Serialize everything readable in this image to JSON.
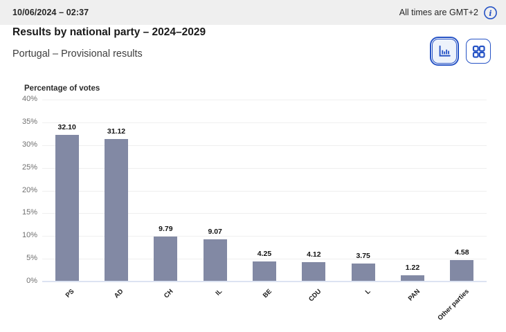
{
  "topbar": {
    "datetime": "10/06/2024 – 02:37",
    "timezone_note": "All times are GMT+2"
  },
  "header": {
    "title": "Results by national party – 2024–2029",
    "subtitle": "Portugal – Provisional results"
  },
  "view_toggle": {
    "chart_button_label": "bar chart view",
    "grid_button_label": "grid view",
    "selected": "chart"
  },
  "colors": {
    "accent_blue": "#2653c5",
    "bar_fill": "#8289a4",
    "topbar_bg": "#efefef",
    "gridline": "#efefef",
    "axis_line": "#dce3f2",
    "selected_toggle_bg": "#edf2fb"
  },
  "chart_data": {
    "type": "bar",
    "title": "Percentage of votes",
    "categories": [
      "PS",
      "AD",
      "CH",
      "IL",
      "BE",
      "CDU",
      "L",
      "PAN",
      "Other parties"
    ],
    "values": [
      32.1,
      31.12,
      9.79,
      9.07,
      4.25,
      4.12,
      3.75,
      1.22,
      4.58
    ],
    "value_labels": [
      "32.10",
      "31.12",
      "9.79",
      "9.07",
      "4.25",
      "4.12",
      "3.75",
      "1.22",
      "4.58"
    ],
    "xlabel": "",
    "ylabel": "Percentage of votes",
    "ylim": [
      0,
      40
    ],
    "ytick_step": 5,
    "ytick_suffix": "%",
    "grid": true,
    "legend": "none",
    "bar_color": "#8289a4"
  }
}
